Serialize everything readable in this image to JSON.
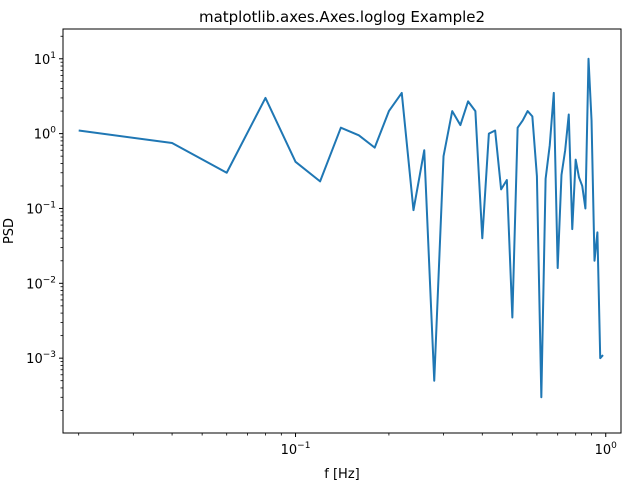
{
  "chart_data": {
    "type": "line",
    "title": "matplotlib.axes.Axes.loglog Example2",
    "xlabel": "f [Hz]",
    "ylabel": "PSD",
    "xscale": "log",
    "yscale": "log",
    "xlim": [
      0.0178,
      1.12
    ],
    "ylim": [
      0.0001,
      25
    ],
    "grid": false,
    "color": "#1f77b4",
    "x_ticks": [
      {
        "value": 0.1,
        "base": "10",
        "exp": "−1"
      },
      {
        "value": 1,
        "base": "10",
        "exp": "0"
      }
    ],
    "y_ticks": [
      {
        "value": 0.001,
        "base": "10",
        "exp": "−3"
      },
      {
        "value": 0.01,
        "base": "10",
        "exp": "−2"
      },
      {
        "value": 0.1,
        "base": "10",
        "exp": "−1"
      },
      {
        "value": 1,
        "base": "10",
        "exp": "0"
      },
      {
        "value": 10,
        "base": "10",
        "exp": "1"
      }
    ],
    "series": [
      {
        "x": [
          0.02,
          0.04,
          0.06,
          0.08,
          0.1,
          0.12,
          0.14,
          0.16,
          0.18,
          0.2,
          0.22,
          0.24,
          0.26,
          0.28,
          0.3,
          0.32,
          0.34,
          0.36,
          0.38,
          0.4,
          0.42,
          0.44,
          0.46,
          0.48,
          0.5,
          0.52,
          0.54,
          0.56,
          0.58,
          0.6,
          0.62,
          0.64,
          0.66,
          0.68,
          0.7,
          0.72,
          0.74,
          0.76,
          0.78,
          0.8,
          0.82,
          0.84,
          0.86,
          0.88,
          0.9,
          0.92,
          0.94,
          0.96,
          0.98
        ],
        "y": [
          1.1,
          0.75,
          0.3,
          3.0,
          0.42,
          0.23,
          1.2,
          0.95,
          0.65,
          2.0,
          3.5,
          0.095,
          0.6,
          0.0005,
          0.5,
          2.0,
          1.3,
          2.7,
          2.0,
          0.04,
          1.0,
          1.1,
          0.18,
          0.24,
          0.0035,
          1.2,
          1.5,
          2.0,
          1.7,
          0.27,
          0.0003,
          0.25,
          0.7,
          3.5,
          0.016,
          0.28,
          0.6,
          1.8,
          0.053,
          0.45,
          0.26,
          0.2,
          0.1,
          10,
          1.5,
          0.02,
          0.048,
          0.001,
          0.0011
        ]
      }
    ]
  }
}
